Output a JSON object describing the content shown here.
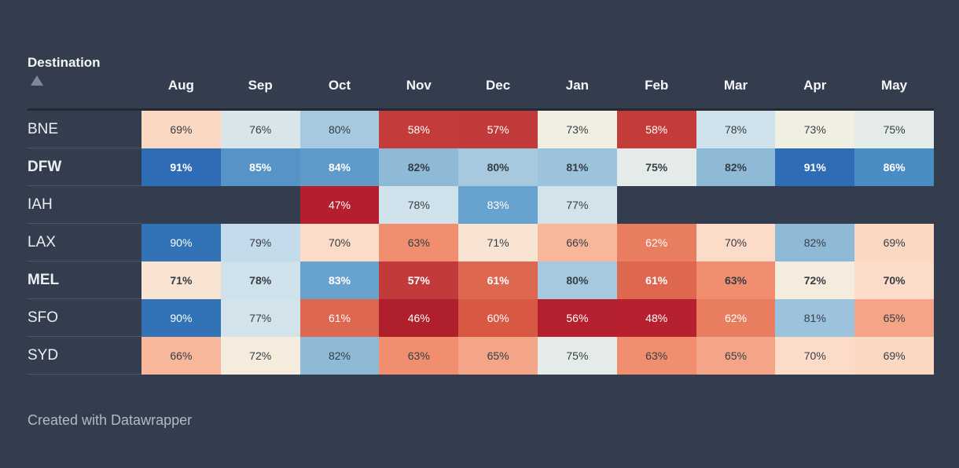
{
  "app": {
    "attribution": "Created with Datawrapper"
  },
  "table": {
    "header": {
      "label": "Destination",
      "sort_direction": "ascending"
    },
    "columns": [
      "Aug",
      "Sep",
      "Oct",
      "Nov",
      "Dec",
      "Jan",
      "Feb",
      "Mar",
      "Apr",
      "May"
    ],
    "value_suffix": "%",
    "rows": [
      {
        "label": "BNE",
        "bold": false,
        "values": [
          69,
          76,
          80,
          58,
          57,
          73,
          58,
          78,
          73,
          75
        ]
      },
      {
        "label": "DFW",
        "bold": true,
        "values": [
          91,
          85,
          84,
          82,
          80,
          81,
          75,
          82,
          91,
          86
        ]
      },
      {
        "label": "IAH",
        "bold": false,
        "values": [
          null,
          null,
          47,
          78,
          83,
          77,
          null,
          null,
          null,
          null
        ]
      },
      {
        "label": "LAX",
        "bold": false,
        "values": [
          90,
          79,
          70,
          63,
          71,
          66,
          62,
          70,
          82,
          69
        ]
      },
      {
        "label": "MEL",
        "bold": true,
        "values": [
          71,
          78,
          83,
          57,
          61,
          80,
          61,
          63,
          72,
          70
        ]
      },
      {
        "label": "SFO",
        "bold": false,
        "values": [
          90,
          77,
          61,
          46,
          60,
          56,
          48,
          62,
          81,
          65
        ]
      },
      {
        "label": "SYD",
        "bold": false,
        "values": [
          66,
          72,
          82,
          63,
          65,
          75,
          63,
          65,
          70,
          69
        ]
      }
    ]
  },
  "chart_data": {
    "type": "heatmap",
    "title": "",
    "x_categories": [
      "Aug",
      "Sep",
      "Oct",
      "Nov",
      "Dec",
      "Jan",
      "Feb",
      "Mar",
      "Apr",
      "May"
    ],
    "y_categories": [
      "BNE",
      "DFW",
      "IAH",
      "LAX",
      "MEL",
      "SFO",
      "SYD"
    ],
    "values_percent": [
      [
        69,
        76,
        80,
        58,
        57,
        73,
        58,
        78,
        73,
        75
      ],
      [
        91,
        85,
        84,
        82,
        80,
        81,
        75,
        82,
        91,
        86
      ],
      [
        null,
        null,
        47,
        78,
        83,
        77,
        null,
        null,
        null,
        null
      ],
      [
        90,
        79,
        70,
        63,
        71,
        66,
        62,
        70,
        82,
        69
      ],
      [
        71,
        78,
        83,
        57,
        61,
        80,
        61,
        63,
        72,
        70
      ],
      [
        90,
        77,
        61,
        46,
        60,
        56,
        48,
        62,
        81,
        65
      ],
      [
        66,
        72,
        82,
        63,
        65,
        75,
        63,
        65,
        70,
        69
      ]
    ],
    "unit": "%",
    "value_range": [
      46,
      91
    ],
    "color_scale": "diverging: dark red (low) through off-white (~74) to dark blue (high)",
    "legend_position": "none"
  },
  "colors": {
    "background": "#333d4e",
    "header_text": "#f4f6f8",
    "row_label_text": "#eceff2",
    "header_rule": "#232a34",
    "row_divider": "#4d5765",
    "sort_arrow": "#7e8896",
    "attribution_text": "#b4bac2",
    "cell_text_dark": "#363d44",
    "cell_text_light": "#ffffff",
    "light_text_max": 62,
    "light_text_min": 83,
    "scale": {
      "46": "#b01f2c",
      "47": "#b51e2d",
      "48": "#b7212f",
      "56": "#b4202e",
      "57": "#c23a3a",
      "58": "#c43c3a",
      "60": "#d75843",
      "61": "#de6750",
      "62": "#e87e5f",
      "63": "#f18e6f",
      "65": "#f5a587",
      "66": "#f8b79a",
      "69": "#fbd8c2",
      "70": "#fcdcc8",
      "71": "#f9e4d3",
      "72": "#f6ecdd",
      "73": "#f1efe2",
      "75": "#e4ebe9",
      "76": "#d8e5e9",
      "77": "#d3e3ec",
      "78": "#cfe1eb",
      "79": "#c3dbea",
      "80": "#a7c9e0",
      "81": "#9cc3dd",
      "82": "#8ebad8",
      "83": "#68a2ce",
      "84": "#5f9bca",
      "85": "#5694c7",
      "86": "#4a8dc5",
      "90": "#3272b7",
      "91": "#2e6db5"
    }
  }
}
